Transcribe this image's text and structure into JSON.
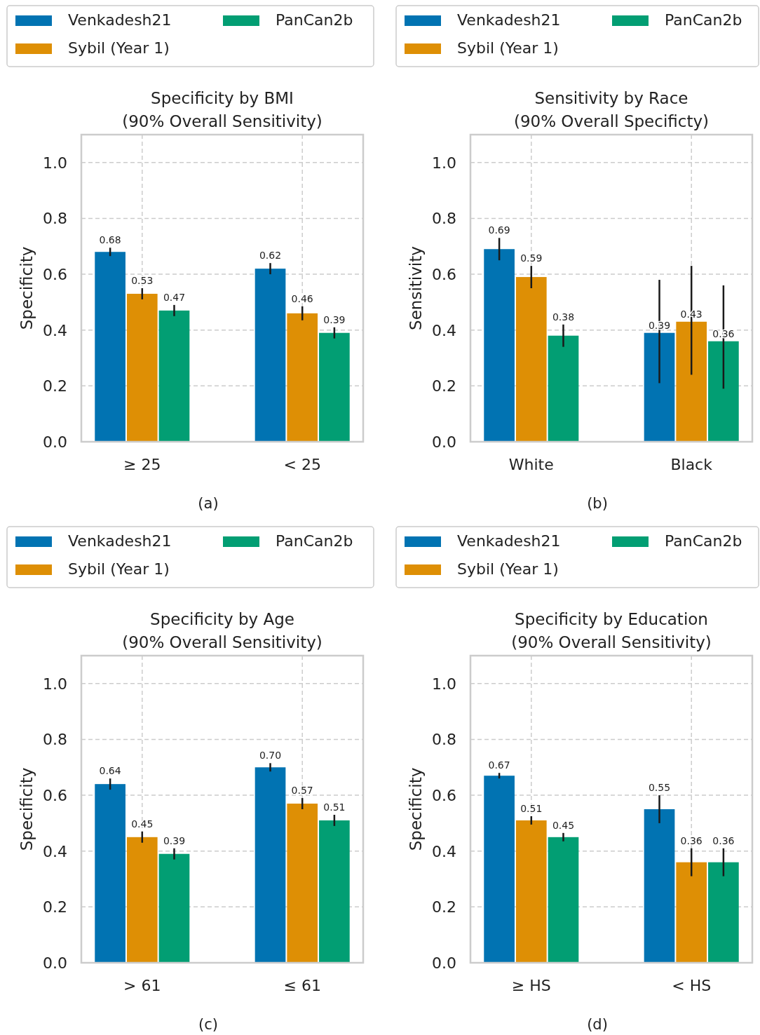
{
  "chart_data": [
    {
      "type": "bar",
      "title": "Specificity by BMI\n(90% Overall Sensitivity)",
      "ylabel": "Specificity",
      "categories": [
        "≥ 25",
        "< 25"
      ],
      "series": [
        {
          "name": "Venkadesh21",
          "color": "#0173b2",
          "values": [
            0.68,
            0.62
          ],
          "errors": [
            0.015,
            0.02
          ],
          "value_labels": [
            "0.68",
            "0.62"
          ]
        },
        {
          "name": "Sybil (Year 1)",
          "color": "#de8f05",
          "values": [
            0.53,
            0.46
          ],
          "errors": [
            0.02,
            0.025
          ],
          "value_labels": [
            "0.53",
            "0.46"
          ]
        },
        {
          "name": "PanCan2b",
          "color": "#029e73",
          "values": [
            0.47,
            0.39
          ],
          "errors": [
            0.02,
            0.02
          ],
          "value_labels": [
            "0.47",
            "0.39"
          ]
        }
      ],
      "ylim": [
        0,
        1.1
      ],
      "yticks": [
        {
          "value": 0,
          "label": "0.0"
        },
        {
          "value": 0.2,
          "label": "0.2"
        },
        {
          "value": 0.4,
          "label": "0.4"
        },
        {
          "value": 0.6,
          "label": "0.6"
        },
        {
          "value": 0.8,
          "label": "0.8"
        },
        {
          "value": 1,
          "label": "1.0"
        }
      ],
      "grid": true,
      "legend": "top",
      "annotations": [
        "(a)"
      ]
    },
    {
      "type": "bar",
      "title": "Sensitivity by Race\n(90% Overall Specificty)",
      "ylabel": "Sensitivity",
      "categories": [
        "White",
        "Black"
      ],
      "series": [
        {
          "name": "Venkadesh21",
          "color": "#0173b2",
          "values": [
            0.69,
            0.39
          ],
          "errors": [
            0.04,
            [
              0.21,
              0.58
            ]
          ],
          "value_labels": [
            "0.69",
            "0.39"
          ]
        },
        {
          "name": "Sybil (Year 1)",
          "color": "#de8f05",
          "values": [
            0.59,
            0.43
          ],
          "errors": [
            0.04,
            [
              0.24,
              0.63
            ]
          ],
          "value_labels": [
            "0.59",
            "0.43"
          ]
        },
        {
          "name": "PanCan2b",
          "color": "#029e73",
          "values": [
            0.38,
            0.36
          ],
          "errors": [
            0.04,
            [
              0.19,
              0.56
            ]
          ],
          "value_labels": [
            "0.38",
            "0.36"
          ]
        }
      ],
      "ylim": [
        0,
        1.1
      ],
      "yticks": [
        {
          "value": 0,
          "label": "0.0"
        },
        {
          "value": 0.2,
          "label": "0.2"
        },
        {
          "value": 0.4,
          "label": "0.4"
        },
        {
          "value": 0.6,
          "label": "0.6"
        },
        {
          "value": 0.8,
          "label": "0.8"
        },
        {
          "value": 1,
          "label": "1.0"
        }
      ],
      "grid": true,
      "legend": "top",
      "annotations": [
        "(b)"
      ]
    },
    {
      "type": "bar",
      "title": "Specificity by Age\n(90% Overall Sensitivity)",
      "ylabel": "Specificity",
      "categories": [
        "> 61",
        "≤ 61"
      ],
      "series": [
        {
          "name": "Venkadesh21",
          "color": "#0173b2",
          "values": [
            0.64,
            0.7
          ],
          "errors": [
            0.02,
            0.015
          ],
          "value_labels": [
            "0.64",
            "0.70"
          ]
        },
        {
          "name": "Sybil (Year 1)",
          "color": "#de8f05",
          "values": [
            0.45,
            0.57
          ],
          "errors": [
            0.02,
            0.02
          ],
          "value_labels": [
            "0.45",
            "0.57"
          ]
        },
        {
          "name": "PanCan2b",
          "color": "#029e73",
          "values": [
            0.39,
            0.51
          ],
          "errors": [
            0.02,
            0.02
          ],
          "value_labels": [
            "0.39",
            "0.51"
          ]
        }
      ],
      "ylim": [
        0,
        1.1
      ],
      "yticks": [
        {
          "value": 0,
          "label": "0.0"
        },
        {
          "value": 0.2,
          "label": "0.2"
        },
        {
          "value": 0.4,
          "label": "0.4"
        },
        {
          "value": 0.6,
          "label": "0.6"
        },
        {
          "value": 0.8,
          "label": "0.8"
        },
        {
          "value": 1,
          "label": "1.0"
        }
      ],
      "grid": true,
      "legend": "top",
      "annotations": [
        "(c)"
      ]
    },
    {
      "type": "bar",
      "title": "Specificity by Education\n(90% Overall Sensitivity)",
      "ylabel": "Specificity",
      "categories": [
        "≥ HS",
        "< HS"
      ],
      "series": [
        {
          "name": "Venkadesh21",
          "color": "#0173b2",
          "values": [
            0.67,
            0.55
          ],
          "errors": [
            0.01,
            0.05
          ],
          "value_labels": [
            "0.67",
            "0.55"
          ]
        },
        {
          "name": "Sybil (Year 1)",
          "color": "#de8f05",
          "values": [
            0.51,
            0.36
          ],
          "errors": [
            0.015,
            0.05
          ],
          "value_labels": [
            "0.51",
            "0.36"
          ]
        },
        {
          "name": "PanCan2b",
          "color": "#029e73",
          "values": [
            0.45,
            0.36
          ],
          "errors": [
            0.015,
            0.05
          ],
          "value_labels": [
            "0.45",
            "0.36"
          ]
        }
      ],
      "ylim": [
        0,
        1.1
      ],
      "yticks": [
        {
          "value": 0,
          "label": "0.0"
        },
        {
          "value": 0.2,
          "label": "0.2"
        },
        {
          "value": 0.4,
          "label": "0.4"
        },
        {
          "value": 0.6,
          "label": "0.6"
        },
        {
          "value": 0.8,
          "label": "0.8"
        },
        {
          "value": 1,
          "label": "1.0"
        }
      ],
      "grid": true,
      "legend": "top",
      "annotations": [
        "(d)"
      ]
    }
  ]
}
